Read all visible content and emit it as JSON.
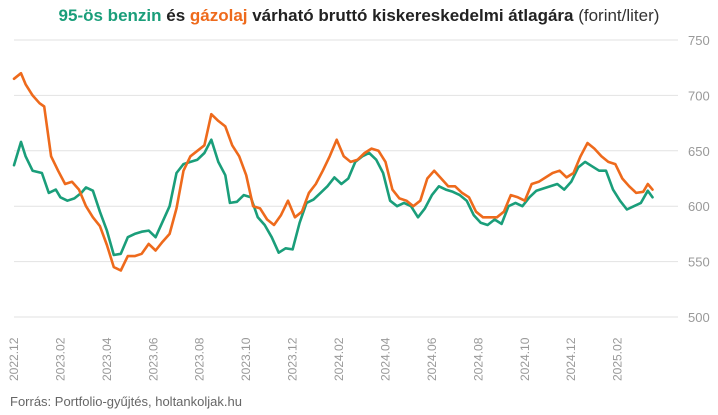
{
  "title": {
    "part1": "95-ös benzin",
    "part2": " és ",
    "part3": "gázolaj",
    "part4": " várható bruttó kiskereskedelmi átlagára ",
    "part5": "(forint/liter)"
  },
  "source": "Forrás: Portfolio-gyűjtés, holtankoljak.hu",
  "chart_data": {
    "type": "line",
    "title": "95-ös benzin és gázolaj várható bruttó kiskereskedelmi átlagára (forint/liter)",
    "ylim": [
      500,
      750
    ],
    "yticks": [
      500,
      550,
      600,
      650,
      700,
      750
    ],
    "xlim": [
      0,
      28.6
    ],
    "xticks": [
      {
        "x": 0,
        "label": "2022.12"
      },
      {
        "x": 2,
        "label": "2023.02"
      },
      {
        "x": 4,
        "label": "2023.04"
      },
      {
        "x": 6,
        "label": "2023.06"
      },
      {
        "x": 8,
        "label": "2023.08"
      },
      {
        "x": 10,
        "label": "2023.10"
      },
      {
        "x": 12,
        "label": "2023.12"
      },
      {
        "x": 14,
        "label": "2024.02"
      },
      {
        "x": 16,
        "label": "2024.04"
      },
      {
        "x": 18,
        "label": "2024.06"
      },
      {
        "x": 20,
        "label": "2024.08"
      },
      {
        "x": 22,
        "label": "2024.10"
      },
      {
        "x": 24,
        "label": "2024.12"
      },
      {
        "x": 26,
        "label": "2025.02"
      }
    ],
    "grid": true,
    "series": [
      {
        "name": "95-ös benzin",
        "color": "#1a9e7a",
        "points": [
          [
            0,
            637
          ],
          [
            0.3,
            658
          ],
          [
            0.5,
            645
          ],
          [
            0.8,
            632
          ],
          [
            1.2,
            630
          ],
          [
            1.5,
            612
          ],
          [
            1.8,
            615
          ],
          [
            2.0,
            608
          ],
          [
            2.3,
            605
          ],
          [
            2.6,
            607
          ],
          [
            2.9,
            612
          ],
          [
            3.1,
            617
          ],
          [
            3.4,
            614
          ],
          [
            3.7,
            595
          ],
          [
            4.0,
            578
          ],
          [
            4.3,
            556
          ],
          [
            4.6,
            557
          ],
          [
            4.9,
            572
          ],
          [
            5.2,
            575
          ],
          [
            5.5,
            577
          ],
          [
            5.8,
            578
          ],
          [
            6.1,
            572
          ],
          [
            6.4,
            586
          ],
          [
            6.7,
            600
          ],
          [
            7.0,
            630
          ],
          [
            7.3,
            638
          ],
          [
            7.6,
            640
          ],
          [
            7.9,
            642
          ],
          [
            8.2,
            648
          ],
          [
            8.5,
            660
          ],
          [
            8.8,
            640
          ],
          [
            9.1,
            628
          ],
          [
            9.3,
            603
          ],
          [
            9.6,
            604
          ],
          [
            9.9,
            610
          ],
          [
            10.2,
            608
          ],
          [
            10.5,
            590
          ],
          [
            10.8,
            583
          ],
          [
            11.1,
            572
          ],
          [
            11.4,
            558
          ],
          [
            11.7,
            562
          ],
          [
            12.0,
            561
          ],
          [
            12.3,
            585
          ],
          [
            12.6,
            603
          ],
          [
            12.9,
            606
          ],
          [
            13.2,
            612
          ],
          [
            13.5,
            618
          ],
          [
            13.8,
            626
          ],
          [
            14.1,
            620
          ],
          [
            14.4,
            625
          ],
          [
            14.7,
            640
          ],
          [
            15.0,
            645
          ],
          [
            15.3,
            648
          ],
          [
            15.6,
            642
          ],
          [
            15.9,
            630
          ],
          [
            16.2,
            605
          ],
          [
            16.5,
            600
          ],
          [
            16.8,
            603
          ],
          [
            17.1,
            600
          ],
          [
            17.4,
            590
          ],
          [
            17.7,
            598
          ],
          [
            18.0,
            610
          ],
          [
            18.3,
            618
          ],
          [
            18.6,
            615
          ],
          [
            18.9,
            613
          ],
          [
            19.2,
            610
          ],
          [
            19.5,
            605
          ],
          [
            19.8,
            592
          ],
          [
            20.1,
            585
          ],
          [
            20.4,
            583
          ],
          [
            20.7,
            588
          ],
          [
            21.0,
            584
          ],
          [
            21.3,
            600
          ],
          [
            21.6,
            603
          ],
          [
            21.9,
            600
          ],
          [
            22.2,
            608
          ],
          [
            22.5,
            614
          ],
          [
            22.8,
            616
          ],
          [
            23.1,
            618
          ],
          [
            23.4,
            620
          ],
          [
            23.7,
            615
          ],
          [
            24.0,
            622
          ],
          [
            24.3,
            635
          ],
          [
            24.6,
            640
          ],
          [
            24.9,
            636
          ],
          [
            25.2,
            632
          ],
          [
            25.5,
            632
          ],
          [
            25.8,
            615
          ],
          [
            26.1,
            605
          ],
          [
            26.4,
            597
          ],
          [
            26.7,
            600
          ],
          [
            27.0,
            603
          ],
          [
            27.3,
            614
          ],
          [
            27.5,
            608
          ]
        ]
      },
      {
        "name": "gázolaj",
        "color": "#ee6a1c",
        "points": [
          [
            0,
            715
          ],
          [
            0.3,
            720
          ],
          [
            0.5,
            710
          ],
          [
            0.8,
            700
          ],
          [
            1.1,
            693
          ],
          [
            1.3,
            690
          ],
          [
            1.6,
            645
          ],
          [
            1.9,
            632
          ],
          [
            2.2,
            620
          ],
          [
            2.5,
            622
          ],
          [
            2.8,
            615
          ],
          [
            3.1,
            600
          ],
          [
            3.4,
            590
          ],
          [
            3.7,
            582
          ],
          [
            4.0,
            565
          ],
          [
            4.3,
            545
          ],
          [
            4.6,
            542
          ],
          [
            4.9,
            555
          ],
          [
            5.2,
            555
          ],
          [
            5.5,
            557
          ],
          [
            5.8,
            566
          ],
          [
            6.1,
            560
          ],
          [
            6.4,
            568
          ],
          [
            6.7,
            575
          ],
          [
            7.0,
            598
          ],
          [
            7.3,
            632
          ],
          [
            7.6,
            645
          ],
          [
            7.9,
            650
          ],
          [
            8.2,
            655
          ],
          [
            8.5,
            683
          ],
          [
            8.8,
            677
          ],
          [
            9.1,
            672
          ],
          [
            9.4,
            655
          ],
          [
            9.7,
            645
          ],
          [
            10.0,
            628
          ],
          [
            10.3,
            600
          ],
          [
            10.6,
            598
          ],
          [
            10.9,
            588
          ],
          [
            11.2,
            583
          ],
          [
            11.5,
            592
          ],
          [
            11.8,
            605
          ],
          [
            12.1,
            590
          ],
          [
            12.4,
            595
          ],
          [
            12.7,
            612
          ],
          [
            13.0,
            620
          ],
          [
            13.3,
            632
          ],
          [
            13.6,
            645
          ],
          [
            13.9,
            660
          ],
          [
            14.2,
            645
          ],
          [
            14.5,
            640
          ],
          [
            14.8,
            642
          ],
          [
            15.1,
            648
          ],
          [
            15.4,
            652
          ],
          [
            15.7,
            650
          ],
          [
            16.0,
            640
          ],
          [
            16.3,
            615
          ],
          [
            16.6,
            607
          ],
          [
            16.9,
            605
          ],
          [
            17.2,
            600
          ],
          [
            17.5,
            605
          ],
          [
            17.8,
            625
          ],
          [
            18.1,
            632
          ],
          [
            18.4,
            625
          ],
          [
            18.7,
            618
          ],
          [
            19.0,
            618
          ],
          [
            19.3,
            612
          ],
          [
            19.6,
            608
          ],
          [
            19.9,
            595
          ],
          [
            20.2,
            590
          ],
          [
            20.5,
            590
          ],
          [
            20.8,
            590
          ],
          [
            21.1,
            595
          ],
          [
            21.4,
            610
          ],
          [
            21.7,
            608
          ],
          [
            22.0,
            605
          ],
          [
            22.3,
            620
          ],
          [
            22.6,
            622
          ],
          [
            22.9,
            626
          ],
          [
            23.2,
            630
          ],
          [
            23.5,
            632
          ],
          [
            23.8,
            626
          ],
          [
            24.1,
            630
          ],
          [
            24.4,
            645
          ],
          [
            24.7,
            657
          ],
          [
            25.0,
            652
          ],
          [
            25.3,
            645
          ],
          [
            25.6,
            640
          ],
          [
            25.9,
            638
          ],
          [
            26.2,
            625
          ],
          [
            26.5,
            618
          ],
          [
            26.8,
            612
          ],
          [
            27.1,
            613
          ],
          [
            27.3,
            620
          ],
          [
            27.5,
            615
          ]
        ]
      }
    ]
  }
}
